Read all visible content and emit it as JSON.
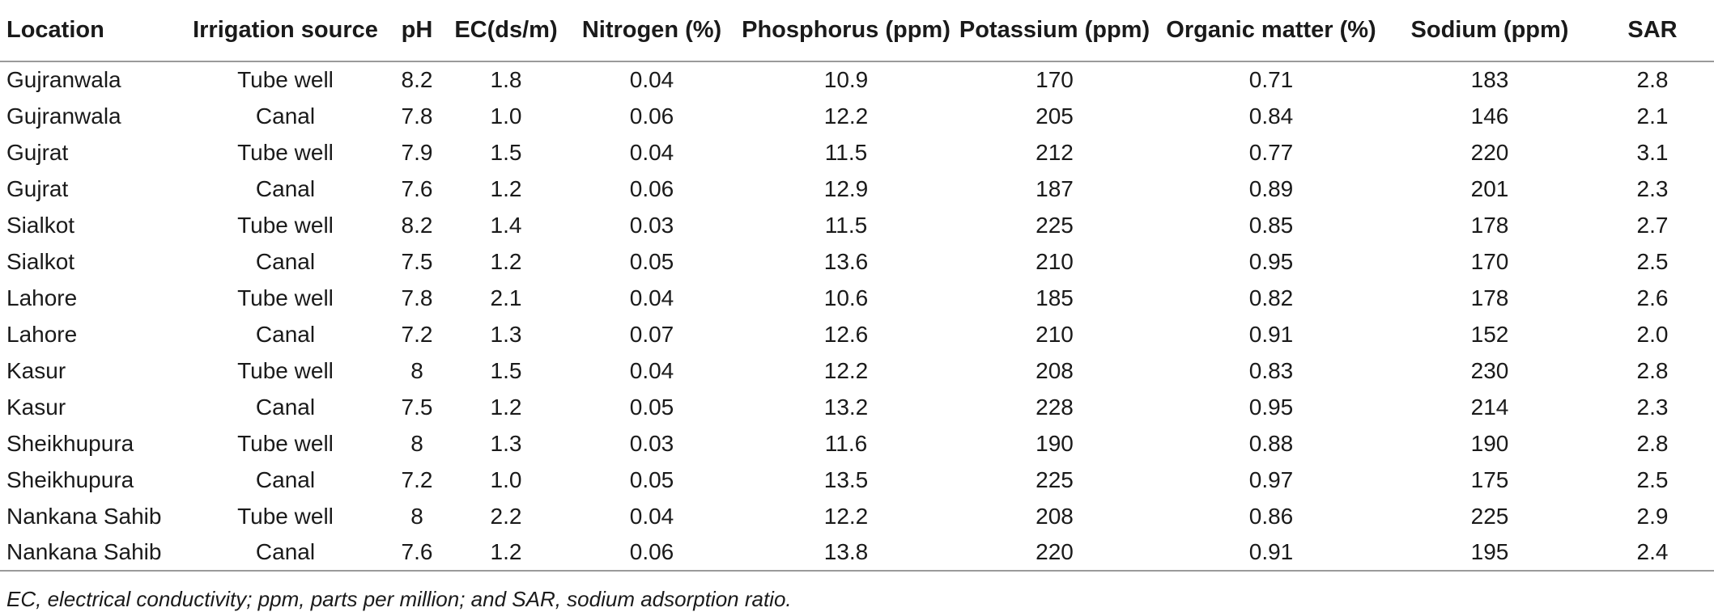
{
  "table": {
    "headers": [
      "Location",
      "Irrigation source",
      "pH",
      "EC(ds/m)",
      "Nitrogen (%)",
      "Phosphorus (ppm)",
      "Potassium (ppm)",
      "Organic matter (%)",
      "Sodium (ppm)",
      "SAR"
    ],
    "rows": [
      [
        "Gujranwala",
        "Tube well",
        "8.2",
        "1.8",
        "0.04",
        "10.9",
        "170",
        "0.71",
        "183",
        "2.8"
      ],
      [
        "Gujranwala",
        "Canal",
        "7.8",
        "1.0",
        "0.06",
        "12.2",
        "205",
        "0.84",
        "146",
        "2.1"
      ],
      [
        "Gujrat",
        "Tube well",
        "7.9",
        "1.5",
        "0.04",
        "11.5",
        "212",
        "0.77",
        "220",
        "3.1"
      ],
      [
        "Gujrat",
        "Canal",
        "7.6",
        "1.2",
        "0.06",
        "12.9",
        "187",
        "0.89",
        "201",
        "2.3"
      ],
      [
        "Sialkot",
        "Tube well",
        "8.2",
        "1.4",
        "0.03",
        "11.5",
        "225",
        "0.85",
        "178",
        "2.7"
      ],
      [
        "Sialkot",
        "Canal",
        "7.5",
        "1.2",
        "0.05",
        "13.6",
        "210",
        "0.95",
        "170",
        "2.5"
      ],
      [
        "Lahore",
        "Tube well",
        "7.8",
        "2.1",
        "0.04",
        "10.6",
        "185",
        "0.82",
        "178",
        "2.6"
      ],
      [
        "Lahore",
        "Canal",
        "7.2",
        "1.3",
        "0.07",
        "12.6",
        "210",
        "0.91",
        "152",
        "2.0"
      ],
      [
        "Kasur",
        "Tube well",
        "8",
        "1.5",
        "0.04",
        "12.2",
        "208",
        "0.83",
        "230",
        "2.8"
      ],
      [
        "Kasur",
        "Canal",
        "7.5",
        "1.2",
        "0.05",
        "13.2",
        "228",
        "0.95",
        "214",
        "2.3"
      ],
      [
        "Sheikhupura",
        "Tube well",
        "8",
        "1.3",
        "0.03",
        "11.6",
        "190",
        "0.88",
        "190",
        "2.8"
      ],
      [
        "Sheikhupura",
        "Canal",
        "7.2",
        "1.0",
        "0.05",
        "13.5",
        "225",
        "0.97",
        "175",
        "2.5"
      ],
      [
        "Nankana Sahib",
        "Tube well",
        "8",
        "2.2",
        "0.04",
        "12.2",
        "208",
        "0.86",
        "225",
        "2.9"
      ],
      [
        "Nankana Sahib",
        "Canal",
        "7.6",
        "1.2",
        "0.06",
        "13.8",
        "220",
        "0.91",
        "195",
        "2.4"
      ]
    ]
  },
  "footnote": "EC, electrical conductivity; ppm, parts per million; and SAR, sodium adsorption ratio."
}
